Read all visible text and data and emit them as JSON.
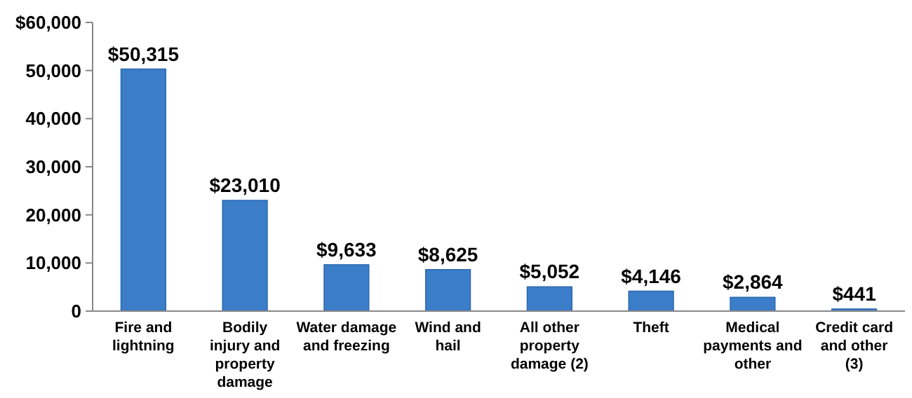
{
  "chart_data": {
    "type": "bar",
    "categories": [
      "Fire and lightning",
      "Bodily injury and property damage",
      "Water damage and freezing",
      "Wind and hail",
      "All other property damage (2)",
      "Theft",
      "Medical payments and other",
      "Credit card and other (3)"
    ],
    "values": [
      50315,
      23010,
      9633,
      8625,
      5052,
      4146,
      2864,
      441
    ],
    "value_labels": [
      "$50,315",
      "$23,010",
      "$9,633",
      "$8,625",
      "$5,052",
      "$4,146",
      "$2,864",
      "$441"
    ],
    "color": "#3b7dc8",
    "ylim": [
      0,
      60000
    ],
    "yticks": [
      {
        "value": 0,
        "label": "0"
      },
      {
        "value": 10000,
        "label": "10,000"
      },
      {
        "value": 20000,
        "label": "20,000"
      },
      {
        "value": 30000,
        "label": "30,000"
      },
      {
        "value": 40000,
        "label": "40,000"
      },
      {
        "value": 50000,
        "label": "50,000"
      },
      {
        "value": 60000,
        "label": "$60,000"
      }
    ],
    "grid": false
  }
}
